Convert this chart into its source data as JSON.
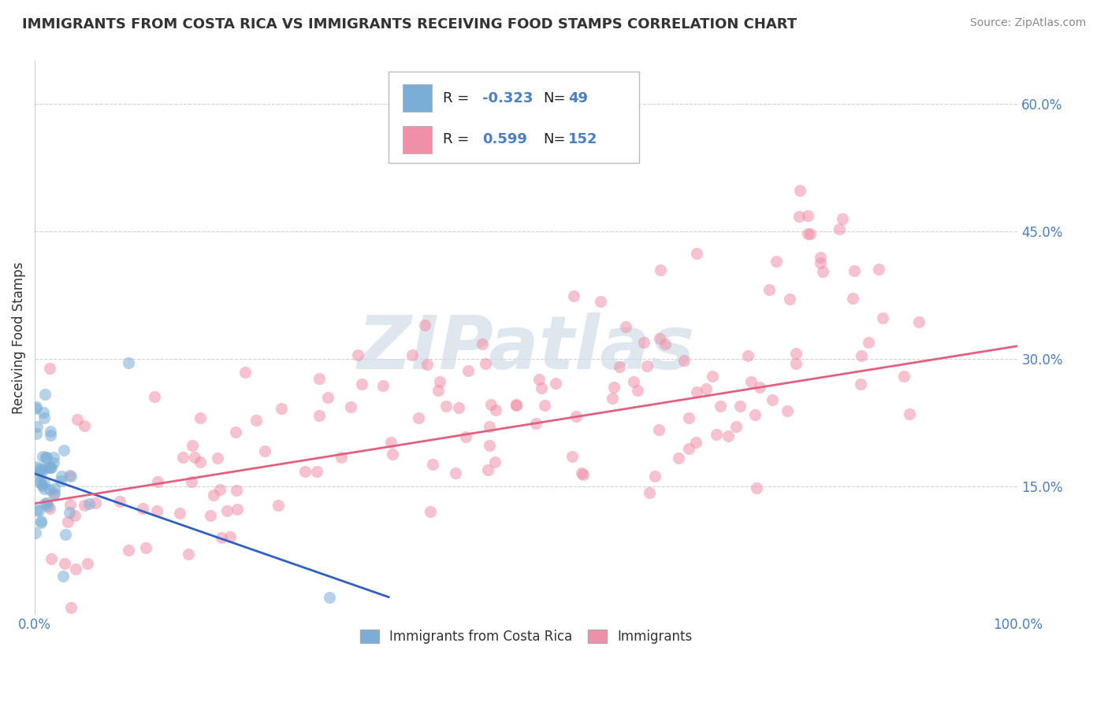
{
  "title": "IMMIGRANTS FROM COSTA RICA VS IMMIGRANTS RECEIVING FOOD STAMPS CORRELATION CHART",
  "source": "Source: ZipAtlas.com",
  "ylabel_label": "Receiving Food Stamps",
  "legend_labels": [
    "Immigrants from Costa Rica",
    "Immigrants"
  ],
  "blue_R": -0.323,
  "blue_N": 49,
  "pink_R": 0.599,
  "pink_N": 152,
  "blue_color": "#7aaed6",
  "pink_color": "#f090a8",
  "blue_line_color": "#3060c0",
  "pink_line_color": "#e06080",
  "watermark": "ZIPatlas",
  "bg_color": "#ffffff",
  "grid_color": "#cccccc",
  "xlim": [
    0.0,
    1.0
  ],
  "ylim": [
    0.0,
    0.65
  ],
  "xticks": [
    0.0,
    1.0
  ],
  "yticks": [
    0.15,
    0.3,
    0.45,
    0.6
  ],
  "blue_trend_x0": 0.0,
  "blue_trend_x1": 0.36,
  "blue_trend_y0": 0.165,
  "blue_trend_y1": 0.02,
  "pink_trend_x0": 0.0,
  "pink_trend_x1": 1.0,
  "pink_trend_y0": 0.13,
  "pink_trend_y1": 0.315,
  "scatter_size": 120,
  "scatter_alpha": 0.55,
  "title_fontsize": 13,
  "tick_label_color": "#4a7fc1",
  "tick_fontsize": 12
}
